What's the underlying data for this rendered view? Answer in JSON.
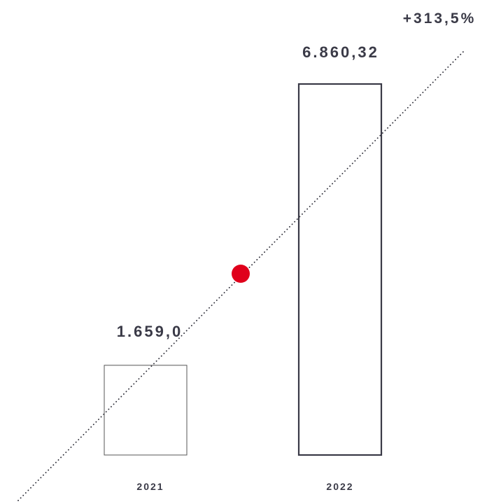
{
  "chart_data": {
    "type": "bar",
    "categories": [
      "2021",
      "2022"
    ],
    "values": [
      1659.0,
      6860.32
    ],
    "value_labels": [
      "1.659,0",
      "6.860,32"
    ],
    "change_label": "+313,5%",
    "colors": {
      "bar_stroke_2021": "#555555",
      "bar_stroke_2022": "#3a3a47",
      "text": "#3a3a47",
      "trend_line": "#2a2a35",
      "marker": "#e0001b"
    },
    "grid": false,
    "legend": "none"
  }
}
